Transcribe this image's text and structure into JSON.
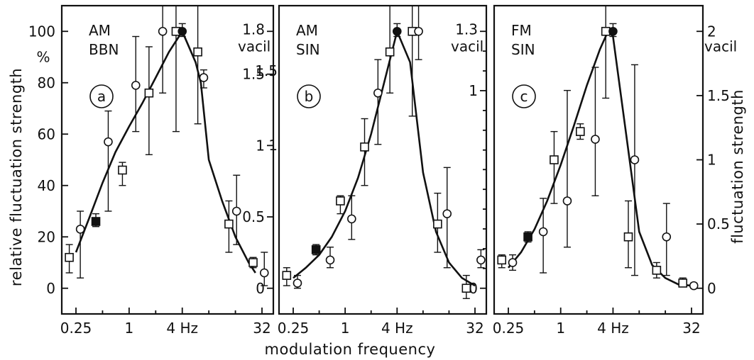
{
  "figure": {
    "y_title_left": "relative fluctuation strength",
    "y_title_right": "fluctuation strength",
    "x_title": "modulation frequency"
  },
  "chart_data": [
    {
      "type": "scatter",
      "panel_label": "a",
      "title_lines": [
        "AM",
        "BBN"
      ],
      "x_scale": "log2",
      "xlim": [
        0.2,
        40
      ],
      "x_ticks": [
        0.25,
        1,
        4,
        32
      ],
      "x_tick_labels": [
        "0.25",
        "1",
        "4 Hz",
        "32"
      ],
      "ylim": [
        -10,
        110
      ],
      "y_ticks_left": [
        0,
        20,
        40,
        60,
        80,
        100
      ],
      "y_tick_labels_left": [
        "0",
        "20",
        "40",
        "60",
        "80",
        "100"
      ],
      "y_unit_label_left": "%",
      "right_ticks": [
        {
          "y": 100,
          "label": "1.8"
        },
        {
          "y": 83.33,
          "label": "1.5"
        },
        {
          "y": 55.56,
          "label": "1"
        },
        {
          "y": 27.78,
          "label": "0.5"
        },
        {
          "y": 0,
          "label": "0"
        }
      ],
      "right_unit_label": "vacil",
      "curve": [
        [
          0.25,
          14
        ],
        [
          0.35,
          27
        ],
        [
          0.5,
          41
        ],
        [
          0.7,
          53
        ],
        [
          1,
          63
        ],
        [
          1.41,
          72
        ],
        [
          2,
          82
        ],
        [
          2.83,
          92
        ],
        [
          4,
          100
        ],
        [
          5.66,
          88
        ],
        [
          6.5,
          80
        ],
        [
          8,
          50
        ],
        [
          11.3,
          34
        ],
        [
          16,
          20
        ],
        [
          22.6,
          10
        ],
        [
          27,
          6
        ]
      ],
      "series": [
        {
          "name": "",
          "marker": "square-open",
          "points": [
            {
              "x": 0.21,
              "y": 12,
              "lo": 6,
              "hi": 17
            },
            {
              "x": 0.84,
              "y": 46,
              "lo": 40,
              "hi": 49
            },
            {
              "x": 1.68,
              "y": 76,
              "lo": 52,
              "hi": 94
            },
            {
              "x": 3.4,
              "y": 100,
              "lo": 61,
              "hi": 110
            },
            {
              "x": 6.0,
              "y": 92,
              "lo": 64,
              "hi": 110
            },
            {
              "x": 13.5,
              "y": 25,
              "lo": 14,
              "hi": 34
            },
            {
              "x": 25.4,
              "y": 10,
              "lo": 8,
              "hi": 12
            }
          ]
        },
        {
          "name": "",
          "marker": "circle-open",
          "points": [
            {
              "x": 0.28,
              "y": 23,
              "lo": 4,
              "hi": 30
            },
            {
              "x": 0.58,
              "y": 57,
              "lo": 30,
              "hi": 69
            },
            {
              "x": 1.19,
              "y": 79,
              "lo": 61,
              "hi": 98
            },
            {
              "x": 2.4,
              "y": 100,
              "lo": 76,
              "hi": 110
            },
            {
              "x": 7.0,
              "y": 82,
              "lo": 78,
              "hi": 85
            },
            {
              "x": 16.5,
              "y": 30,
              "lo": 17,
              "hi": 44
            },
            {
              "x": 34,
              "y": 6,
              "lo": 1,
              "hi": 14
            }
          ]
        },
        {
          "name": "",
          "marker": "square-filled",
          "points": [
            {
              "x": 0.42,
              "y": 26,
              "lo": 24,
              "hi": 29
            }
          ]
        },
        {
          "name": "",
          "marker": "circle-filled",
          "points": [
            {
              "x": 4.0,
              "y": 100,
              "lo": 98,
              "hi": 103
            }
          ]
        }
      ]
    },
    {
      "type": "scatter",
      "panel_label": "b",
      "title_lines": [
        "AM",
        "SIN"
      ],
      "x_scale": "log2",
      "xlim": [
        0.2,
        40
      ],
      "x_ticks": [
        0.25,
        1,
        4,
        32
      ],
      "x_tick_labels": [
        "0.25",
        "1",
        "4 Hz",
        "32"
      ],
      "ylim": [
        -10,
        110
      ],
      "right_ticks": [
        {
          "y": 100,
          "label": "1.3"
        },
        {
          "y": 76.92,
          "label": "1"
        },
        {
          "y": 0,
          "label": "0"
        }
      ],
      "right_unit_label": "vacil",
      "right_minor_ticks": [
        92.3,
        84.6,
        69.2,
        61.5,
        53.8,
        46.2,
        38.5,
        30.8,
        23.1,
        15.4,
        7.7
      ],
      "right_minor_labels": [
        {
          "y": 84.6,
          "label": "1.5"
        },
        {
          "y": 55.6,
          "label": "1"
        }
      ],
      "curve": [
        [
          0.25,
          4
        ],
        [
          0.35,
          8
        ],
        [
          0.5,
          13
        ],
        [
          0.7,
          20
        ],
        [
          1,
          30
        ],
        [
          1.41,
          43
        ],
        [
          2,
          60
        ],
        [
          2.83,
          80
        ],
        [
          4,
          100
        ],
        [
          5.66,
          88
        ],
        [
          8,
          45
        ],
        [
          11.3,
          22
        ],
        [
          16,
          10
        ],
        [
          22.6,
          4
        ],
        [
          32,
          1
        ]
      ],
      "series": [
        {
          "name": "",
          "marker": "square-open",
          "points": [
            {
              "x": 0.21,
              "y": 5,
              "lo": 1,
              "hi": 8
            },
            {
              "x": 0.88,
              "y": 34,
              "lo": 29,
              "hi": 36
            },
            {
              "x": 1.68,
              "y": 55,
              "lo": 40,
              "hi": 66
            },
            {
              "x": 3.3,
              "y": 92,
              "lo": 76,
              "hi": 110
            },
            {
              "x": 6.0,
              "y": 100,
              "lo": 67,
              "hi": 110
            },
            {
              "x": 11.8,
              "y": 25,
              "lo": 14,
              "hi": 37
            },
            {
              "x": 25.4,
              "y": 0,
              "lo": -4,
              "hi": 5
            }
          ]
        },
        {
          "name": "",
          "marker": "circle-open",
          "points": [
            {
              "x": 0.28,
              "y": 2,
              "lo": 0,
              "hi": 5
            },
            {
              "x": 0.67,
              "y": 11,
              "lo": 8,
              "hi": 16
            },
            {
              "x": 1.19,
              "y": 27,
              "lo": 19,
              "hi": 36
            },
            {
              "x": 2.4,
              "y": 76,
              "lo": 56,
              "hi": 89
            },
            {
              "x": 7.1,
              "y": 100,
              "lo": 89,
              "hi": 110
            },
            {
              "x": 15.2,
              "y": 29,
              "lo": 8,
              "hi": 47
            },
            {
              "x": 37.5,
              "y": 11,
              "lo": 8,
              "hi": 15
            }
          ]
        },
        {
          "name": "",
          "marker": "square-filled",
          "points": [
            {
              "x": 0.46,
              "y": 15,
              "lo": 13,
              "hi": 17
            }
          ]
        },
        {
          "name": "",
          "marker": "circle-filled",
          "points": [
            {
              "x": 4.0,
              "y": 100,
              "lo": 98,
              "hi": 103
            }
          ]
        }
      ]
    },
    {
      "type": "scatter",
      "panel_label": "c",
      "title_lines": [
        "FM",
        "SIN"
      ],
      "x_scale": "log2",
      "xlim": [
        0.2,
        40
      ],
      "x_ticks": [
        0.25,
        1,
        4,
        32
      ],
      "x_tick_labels": [
        "0.25",
        "1",
        "4 Hz",
        "32"
      ],
      "ylim": [
        -10,
        110
      ],
      "right_ticks": [
        {
          "y": 100,
          "label": "2"
        },
        {
          "y": 75,
          "label": "1.5"
        },
        {
          "y": 50,
          "label": "1"
        },
        {
          "y": 25,
          "label": "0.5"
        },
        {
          "y": 0,
          "label": "0"
        }
      ],
      "right_unit_label": "vacil",
      "curve": [
        [
          0.25,
          8
        ],
        [
          0.35,
          14
        ],
        [
          0.5,
          23
        ],
        [
          0.7,
          34
        ],
        [
          1,
          48
        ],
        [
          1.41,
          63
        ],
        [
          2,
          79
        ],
        [
          2.83,
          93
        ],
        [
          3.5,
          100
        ],
        [
          4,
          98
        ],
        [
          5.66,
          60
        ],
        [
          8,
          22
        ],
        [
          11.3,
          9
        ],
        [
          16,
          4
        ],
        [
          22.6,
          1.5
        ],
        [
          32,
          1
        ]
      ],
      "series": [
        {
          "name": "",
          "marker": "square-open",
          "points": [
            {
              "x": 0.21,
              "y": 11,
              "lo": 8,
              "hi": 13
            },
            {
              "x": 0.84,
              "y": 50,
              "lo": 33,
              "hi": 61
            },
            {
              "x": 1.68,
              "y": 61,
              "lo": 58,
              "hi": 64
            },
            {
              "x": 3.3,
              "y": 100,
              "lo": 74,
              "hi": 110
            },
            {
              "x": 6.0,
              "y": 20,
              "lo": 8,
              "hi": 34
            },
            {
              "x": 12.7,
              "y": 7,
              "lo": 4,
              "hi": 10
            },
            {
              "x": 25.4,
              "y": 2,
              "lo": 1,
              "hi": 4
            }
          ]
        },
        {
          "name": "",
          "marker": "circle-open",
          "points": [
            {
              "x": 0.28,
              "y": 10,
              "lo": 7,
              "hi": 13
            },
            {
              "x": 0.63,
              "y": 22,
              "lo": 6,
              "hi": 35
            },
            {
              "x": 1.19,
              "y": 34,
              "lo": 16,
              "hi": 77
            },
            {
              "x": 2.5,
              "y": 58,
              "lo": 36,
              "hi": 86
            },
            {
              "x": 7.1,
              "y": 50,
              "lo": 5,
              "hi": 87
            },
            {
              "x": 16.5,
              "y": 20,
              "lo": 5,
              "hi": 33
            },
            {
              "x": 34,
              "y": 1,
              "lo": 0,
              "hi": 2
            }
          ]
        },
        {
          "name": "",
          "marker": "square-filled",
          "points": [
            {
              "x": 0.42,
              "y": 20,
              "lo": 18,
              "hi": 22
            }
          ]
        },
        {
          "name": "",
          "marker": "circle-filled",
          "points": [
            {
              "x": 4.0,
              "y": 100,
              "lo": 98,
              "hi": 103
            }
          ]
        }
      ]
    }
  ]
}
